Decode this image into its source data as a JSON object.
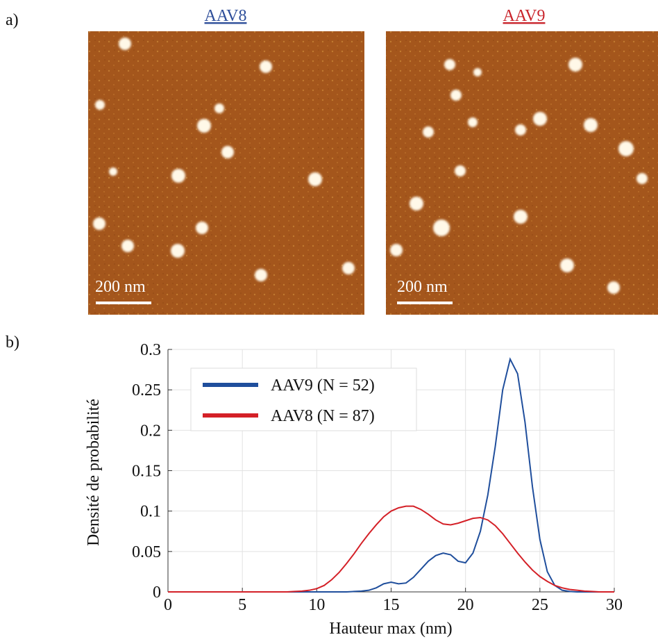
{
  "panels": {
    "a": {
      "label": "a)",
      "images": [
        {
          "title": "AAV8",
          "scale": "200 nm"
        },
        {
          "title": "AAV9",
          "scale": "200 nm"
        }
      ]
    },
    "b": {
      "label": "b)"
    }
  },
  "chart_data": {
    "type": "line",
    "xlabel": "Hauteur max (nm)",
    "ylabel": "Densité de probabilité",
    "xlim": [
      0,
      30
    ],
    "ylim": [
      0,
      0.3
    ],
    "xticks": [
      0,
      5,
      10,
      15,
      20,
      25,
      30
    ],
    "yticks": [
      0,
      0.05,
      0.1,
      0.15,
      0.2,
      0.25,
      0.3
    ],
    "grid": true,
    "legend": "upper left",
    "x": [
      0,
      0.5,
      1,
      1.5,
      2,
      2.5,
      3,
      3.5,
      4,
      4.5,
      5,
      5.5,
      6,
      6.5,
      7,
      7.5,
      8,
      8.5,
      9,
      9.5,
      10,
      10.5,
      11,
      11.5,
      12,
      12.5,
      13,
      13.5,
      14,
      14.5,
      15,
      15.5,
      16,
      16.5,
      17,
      17.5,
      18,
      18.5,
      19,
      19.5,
      20,
      20.5,
      21,
      21.5,
      22,
      22.5,
      23,
      23.5,
      24,
      24.5,
      25,
      25.5,
      26,
      26.5,
      27,
      27.5,
      28,
      28.5,
      29,
      29.5,
      30
    ],
    "series": [
      {
        "name": "AAV9 (N = 52)",
        "color": "#1f4e9c",
        "values": [
          0,
          0,
          0,
          0,
          0,
          0,
          0,
          0,
          0,
          0,
          0,
          0,
          0,
          0,
          0,
          0,
          0,
          0,
          0,
          0,
          0,
          0,
          0,
          0,
          0,
          0.0005,
          0.001,
          0.002,
          0.005,
          0.01,
          0.012,
          0.01,
          0.011,
          0.018,
          0.028,
          0.038,
          0.045,
          0.048,
          0.046,
          0.038,
          0.036,
          0.048,
          0.075,
          0.12,
          0.18,
          0.25,
          0.288,
          0.27,
          0.21,
          0.13,
          0.065,
          0.025,
          0.008,
          0.002,
          0.0005,
          0,
          0,
          0,
          0,
          0,
          0
        ]
      },
      {
        "name": "AAV8 (N = 87)",
        "color": "#d42027",
        "values": [
          0,
          0,
          0,
          0,
          0,
          0,
          0,
          0,
          0,
          0,
          0,
          0,
          0,
          0,
          0,
          0,
          0,
          0.0005,
          0.001,
          0.002,
          0.004,
          0.008,
          0.015,
          0.024,
          0.035,
          0.047,
          0.06,
          0.072,
          0.083,
          0.093,
          0.1,
          0.104,
          0.106,
          0.106,
          0.102,
          0.096,
          0.089,
          0.084,
          0.083,
          0.085,
          0.088,
          0.091,
          0.092,
          0.089,
          0.082,
          0.072,
          0.06,
          0.048,
          0.037,
          0.027,
          0.019,
          0.013,
          0.008,
          0.005,
          0.003,
          0.002,
          0.001,
          0.0005,
          0,
          0,
          0
        ]
      }
    ]
  }
}
